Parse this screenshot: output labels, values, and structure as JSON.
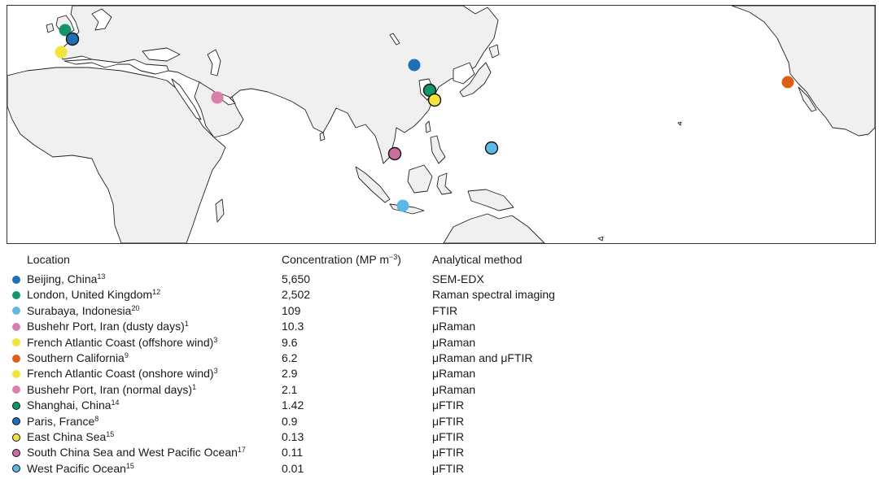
{
  "headers": {
    "location": "Location",
    "concentration": "Concentration (MP m",
    "concentration_exp": "−3",
    "concentration_close": ")",
    "method": "Analytical method"
  },
  "rows": [
    {
      "location": "Beijing, China",
      "ref": "13",
      "concentration": "5,650",
      "method": "SEM-EDX",
      "color": "#1f6fb8",
      "outlined": false
    },
    {
      "location": "London, United Kingdom",
      "ref": "12",
      "concentration": "2,502",
      "method": "Raman spectral imaging",
      "color": "#13956b",
      "outlined": false
    },
    {
      "location": "Surabaya, Indonesia",
      "ref": "20",
      "concentration": "109",
      "method": "FTIR",
      "color": "#5cb8e8",
      "outlined": false
    },
    {
      "location": "Bushehr Port, Iran (dusty days)",
      "ref": "1",
      "concentration": "10.3",
      "method": "μRaman",
      "color": "#d97fae",
      "outlined": false
    },
    {
      "location": "French Atlantic Coast (offshore wind)",
      "ref": "3",
      "concentration": "9.6",
      "method": "μRaman",
      "color": "#f2e43d",
      "outlined": false
    },
    {
      "location": "Southern California",
      "ref": "9",
      "concentration": "6.2",
      "method": "μRaman and μFTIR",
      "color": "#dd5f15",
      "outlined": false
    },
    {
      "location": "French Atlantic Coast (onshore wind)",
      "ref": "3",
      "concentration": "2.9",
      "method": "μRaman",
      "color": "#f2e43d",
      "outlined": false
    },
    {
      "location": "Bushehr Port, Iran (normal days)",
      "ref": "1",
      "concentration": "2.1",
      "method": "μRaman",
      "color": "#d97fae",
      "outlined": false
    },
    {
      "location": "Shanghai, China",
      "ref": "14",
      "concentration": "1.42",
      "method": "μFTIR",
      "color": "#13956b",
      "outlined": true
    },
    {
      "location": "Paris, France",
      "ref": "8",
      "concentration": "0.9",
      "method": "μFTIR",
      "color": "#1f6fb8",
      "outlined": true
    },
    {
      "location": "East China Sea",
      "ref": "15",
      "concentration": "0.13",
      "method": "μFTIR",
      "color": "#f2e43d",
      "outlined": true
    },
    {
      "location": "South China Sea and West Pacific Ocean",
      "ref": "17",
      "concentration": "0.11",
      "method": "μFTIR",
      "color": "#c9709e",
      "outlined": true
    },
    {
      "location": "West Pacific Ocean",
      "ref": "15",
      "concentration": "0.01",
      "method": "μFTIR",
      "color": "#5cb8e8",
      "outlined": true
    }
  ]
}
